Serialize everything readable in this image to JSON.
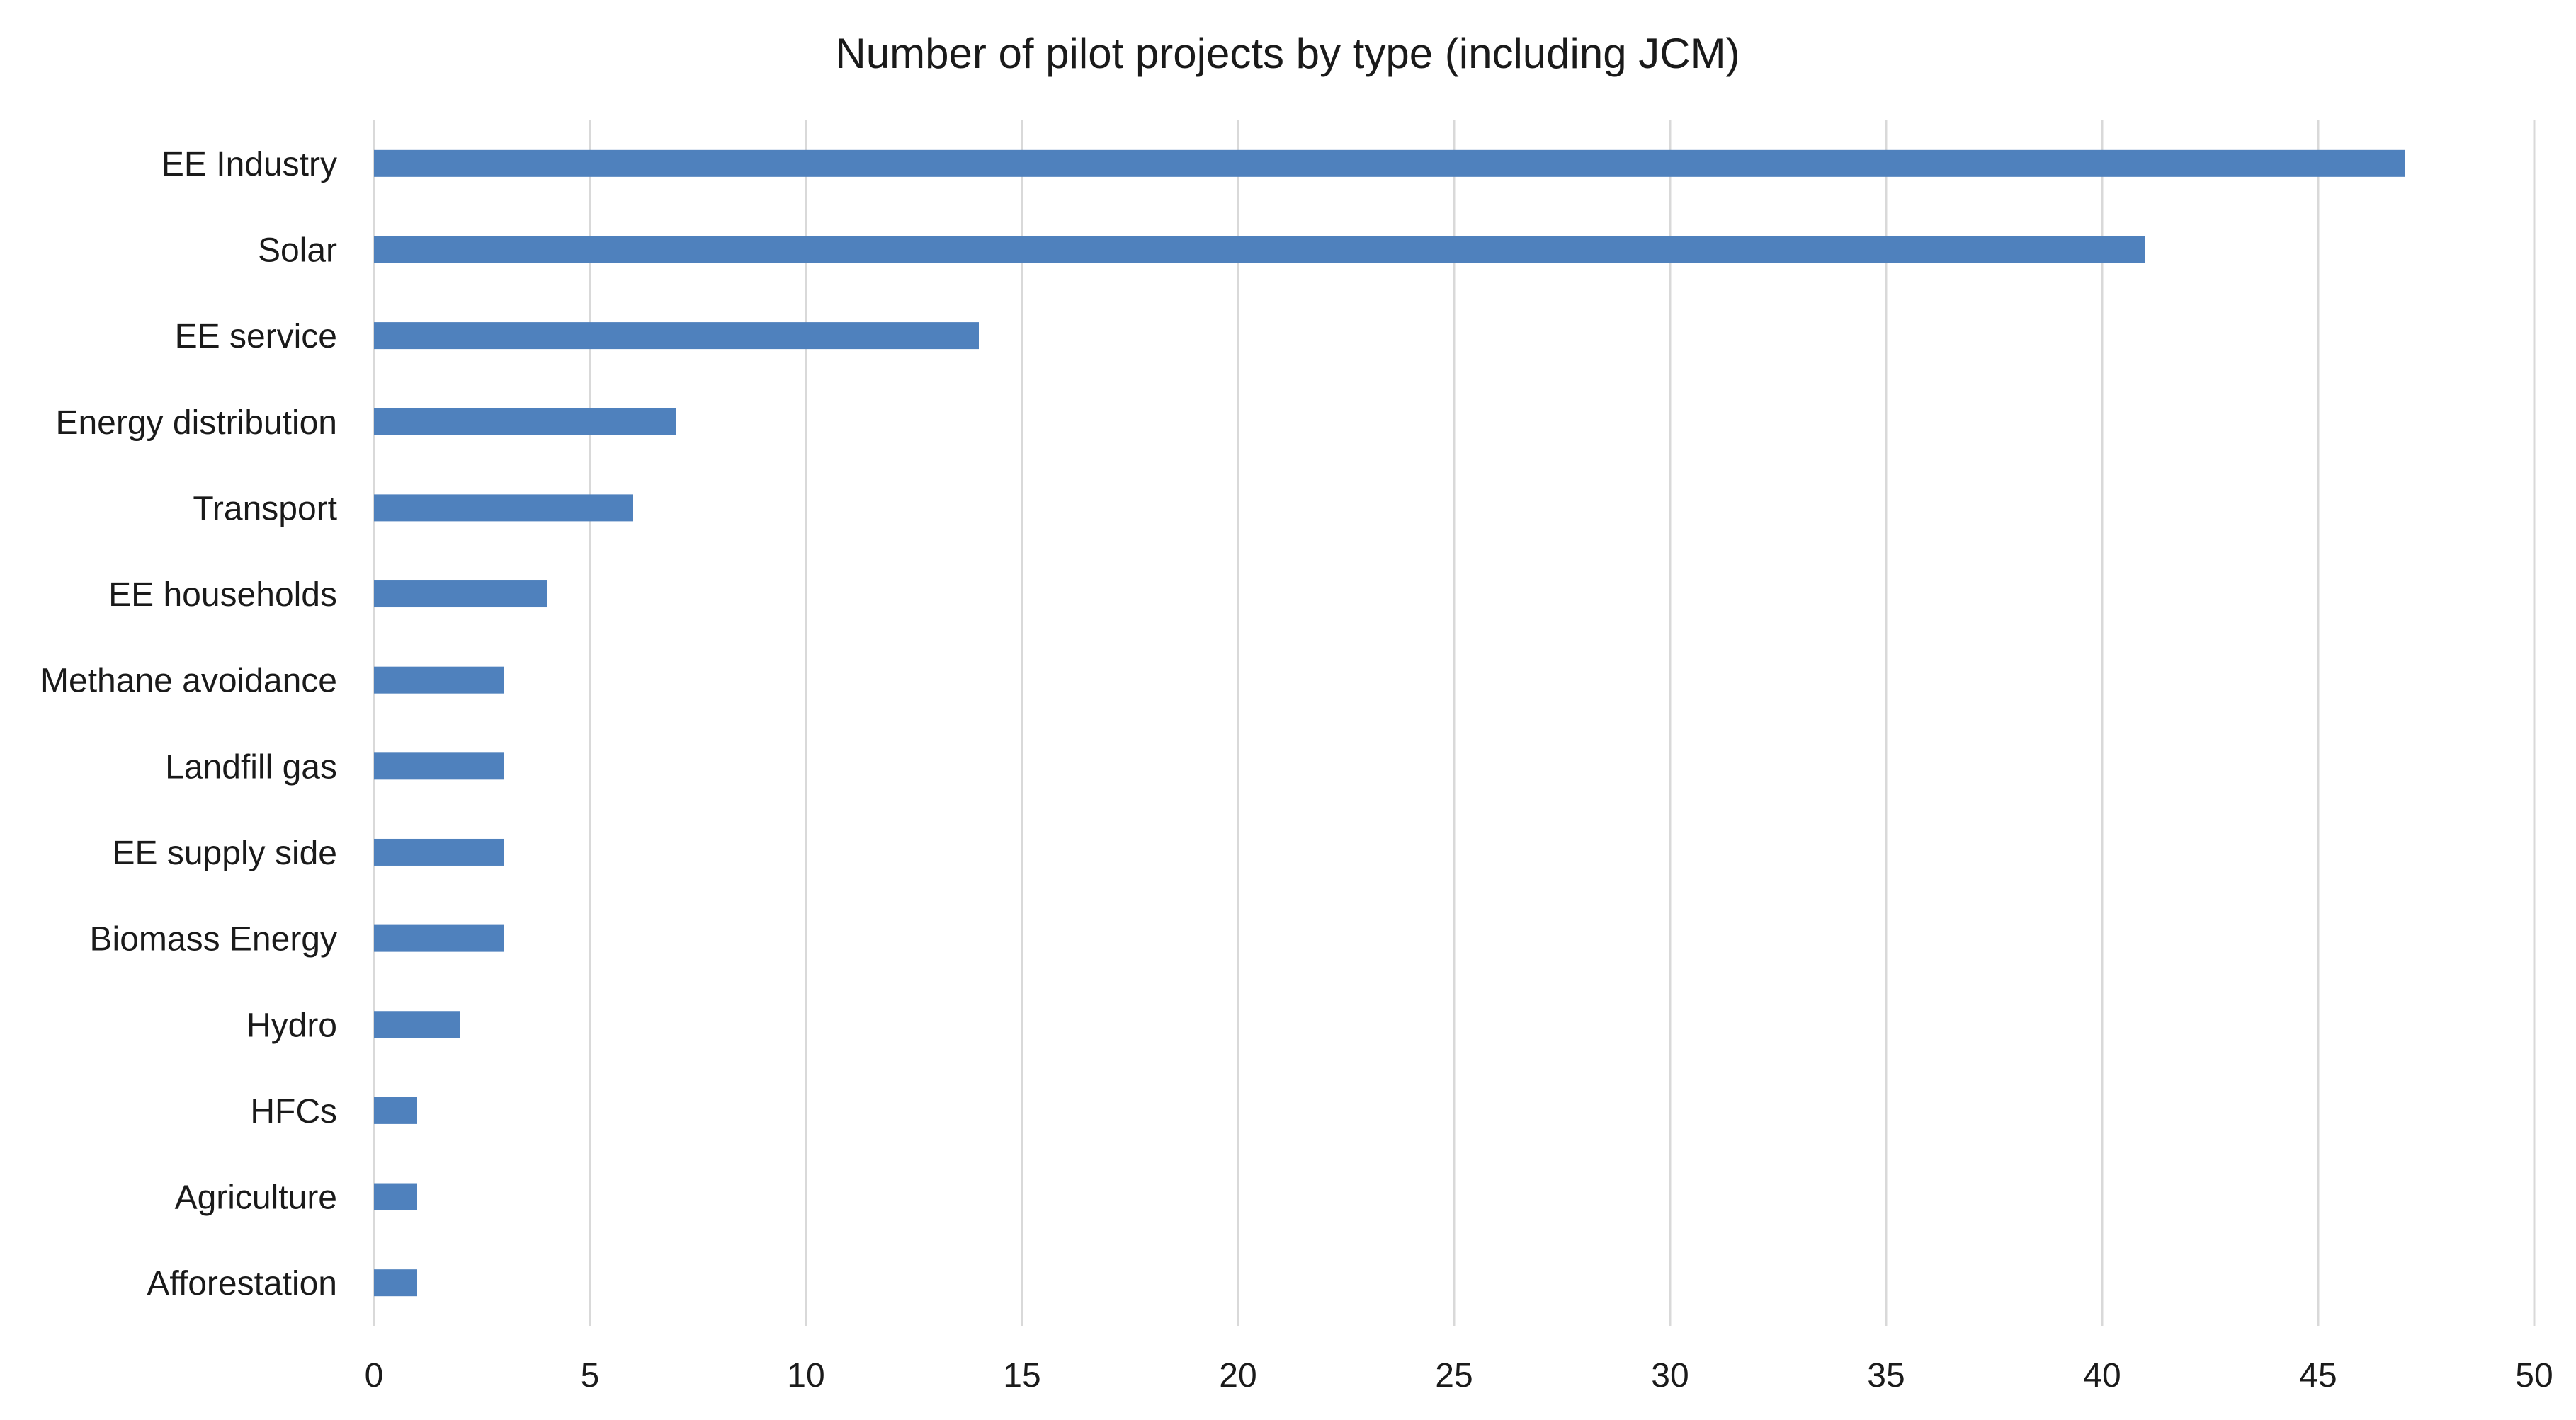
{
  "chart_data": {
    "type": "bar",
    "orientation": "horizontal",
    "title": "Number of pilot projects by type (including JCM)",
    "xlabel": "",
    "ylabel": "",
    "categories": [
      "EE Industry",
      "Solar",
      "EE service",
      "Energy distribution",
      "Transport",
      "EE households",
      "Methane avoidance",
      "Landfill gas",
      "EE supply side",
      "Biomass Energy",
      "Hydro",
      "HFCs",
      "Agriculture",
      "Afforestation"
    ],
    "values": [
      47,
      41,
      14,
      7,
      6,
      4,
      3,
      3,
      3,
      3,
      2,
      1,
      1,
      1
    ],
    "xlim": [
      0,
      50
    ],
    "xticks": [
      0,
      5,
      10,
      15,
      20,
      25,
      30,
      35,
      40,
      45,
      50
    ],
    "grid": true,
    "legend": "none",
    "colors": {
      "bar": "#4F81BD",
      "grid": "#D9D9D9",
      "text": "#1A1A1A"
    }
  }
}
